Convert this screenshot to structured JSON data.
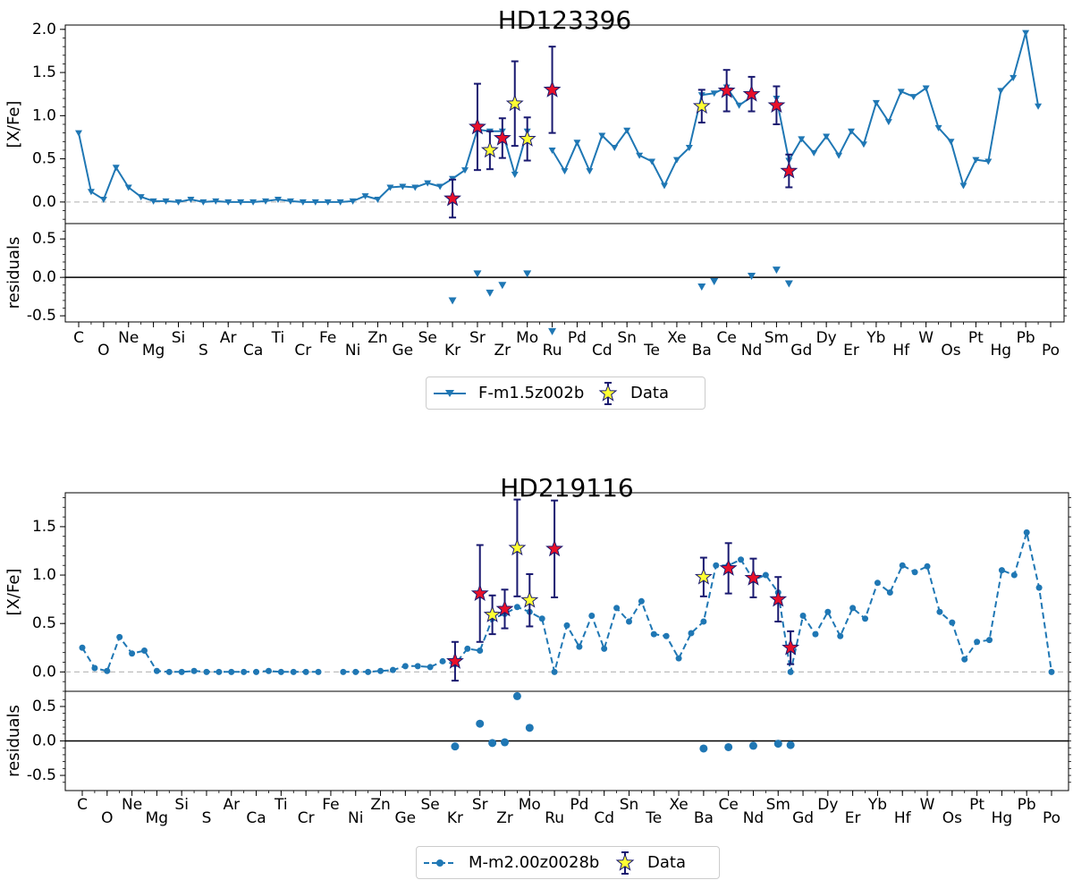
{
  "chart_data": [
    {
      "type": "line",
      "title": "HD123396",
      "ylabel": "[X/Fe]",
      "residual_ylabel": "residuals",
      "ylim": [
        -0.25,
        2.05
      ],
      "yticks": [
        "2.0",
        "1.5",
        "1.0",
        "0.5",
        "0.0"
      ],
      "residual_ylim": [
        -0.58,
        0.7
      ],
      "residual_yticks": [
        "0.5",
        "0.0",
        "-0.5"
      ],
      "x_labels": [
        "C",
        "O",
        "Ne",
        "Mg",
        "Si",
        "S",
        "Ar",
        "Ca",
        "Ti",
        "Cr",
        "Fe",
        "Ni",
        "Zn",
        "Ge",
        "Se",
        "Kr",
        "Sr",
        "Zr",
        "Mo",
        "Ru",
        "Pd",
        "Cd",
        "Sn",
        "Te",
        "Xe",
        "Ba",
        "Ce",
        "Nd",
        "Sm",
        "Gd",
        "Dy",
        "Er",
        "Yb",
        "Hf",
        "W",
        "Os",
        "Pt",
        "Hg",
        "Pb",
        "Po"
      ],
      "marker": "triangle-down",
      "line_style": "solid",
      "color": "#1f77b4",
      "model": {
        "name": "F-m1.5z002b",
        "z": [
          6,
          7,
          8,
          9,
          10,
          11,
          12,
          13,
          14,
          15,
          16,
          17,
          18,
          19,
          20,
          21,
          22,
          23,
          24,
          25,
          26,
          27,
          28,
          29,
          30,
          31,
          32,
          33,
          34,
          35,
          36,
          37,
          38,
          39,
          40,
          41,
          42,
          43,
          44,
          45,
          46,
          47,
          48,
          49,
          50,
          51,
          52,
          53,
          54,
          55,
          56,
          57,
          58,
          59,
          60,
          61,
          62,
          63,
          64,
          65,
          66,
          67,
          68,
          69,
          70,
          71,
          72,
          73,
          74,
          75,
          76,
          77,
          78,
          79,
          80,
          81,
          82,
          83,
          84
        ],
        "values": [
          0.8,
          0.12,
          0.03,
          0.4,
          0.17,
          0.06,
          0.01,
          0.01,
          0.0,
          0.03,
          0.0,
          0.01,
          0.0,
          0.0,
          0.0,
          0.01,
          0.03,
          0.01,
          0.0,
          0.0,
          0.0,
          0.0,
          0.01,
          0.07,
          0.03,
          0.17,
          0.18,
          0.17,
          0.22,
          0.18,
          0.27,
          0.37,
          0.84,
          0.82,
          0.82,
          0.32,
          0.82,
          null,
          0.6,
          0.36,
          0.69,
          0.36,
          0.77,
          0.63,
          0.83,
          0.54,
          0.47,
          0.19,
          0.49,
          0.63,
          1.24,
          1.26,
          1.33,
          1.12,
          1.22,
          null,
          1.2,
          0.48,
          0.73,
          0.57,
          0.76,
          0.54,
          0.82,
          0.67,
          1.15,
          0.93,
          1.28,
          1.22,
          1.32,
          0.86,
          0.7,
          0.19,
          0.49,
          0.47,
          1.29,
          1.44,
          1.96,
          1.11,
          null
        ]
      },
      "observations": [
        {
          "element": "Kr",
          "z": 36,
          "value": 0.04,
          "error": 0.22,
          "star": "red"
        },
        {
          "element": "Sr",
          "z": 38,
          "value": 0.87,
          "error": 0.5,
          "star": "red"
        },
        {
          "element": "Y",
          "z": 39,
          "value": 0.6,
          "error": 0.22,
          "star": "yellow"
        },
        {
          "element": "Zr",
          "z": 40,
          "value": 0.74,
          "error": 0.23,
          "star": "red"
        },
        {
          "element": "Nb",
          "z": 41,
          "value": 1.14,
          "error": 0.49,
          "star": "yellow"
        },
        {
          "element": "Mo",
          "z": 42,
          "value": 0.73,
          "error": 0.25,
          "star": "yellow"
        },
        {
          "element": "Ru",
          "z": 44,
          "value": 1.3,
          "error": 0.5,
          "star": "red"
        },
        {
          "element": "Ba",
          "z": 56,
          "value": 1.11,
          "error": 0.19,
          "star": "yellow"
        },
        {
          "element": "Ce",
          "z": 58,
          "value": 1.29,
          "error": 0.24,
          "star": "red"
        },
        {
          "element": "Nd",
          "z": 60,
          "value": 1.25,
          "error": 0.2,
          "star": "red"
        },
        {
          "element": "Sm",
          "z": 62,
          "value": 1.12,
          "error": 0.22,
          "star": "red"
        },
        {
          "element": "Eu",
          "z": 63,
          "value": 0.36,
          "error": 0.19,
          "star": "red"
        }
      ],
      "residuals": [
        {
          "z": 36,
          "value": -0.3
        },
        {
          "z": 38,
          "value": 0.05
        },
        {
          "z": 39,
          "value": -0.2
        },
        {
          "z": 40,
          "value": -0.1
        },
        {
          "z": 42,
          "value": 0.05
        },
        {
          "z": 44,
          "value": -0.7
        },
        {
          "z": 56,
          "value": -0.12
        },
        {
          "z": 57,
          "value": -0.05
        },
        {
          "z": 60,
          "value": 0.02
        },
        {
          "z": 62,
          "value": 0.1
        },
        {
          "z": 63,
          "value": -0.08
        }
      ],
      "legend": {
        "model_label": "F-m1.5z002b",
        "data_label": "Data"
      }
    },
    {
      "type": "line",
      "title": "HD219116",
      "ylabel": "[X/Fe]",
      "residual_ylabel": "residuals",
      "ylim": [
        -0.2,
        1.85
      ],
      "yticks": [
        "1.5",
        "1.0",
        "0.5",
        "0.0"
      ],
      "residual_ylim": [
        -0.72,
        0.72
      ],
      "residual_yticks": [
        "0.5",
        "0.0",
        "-0.5"
      ],
      "x_labels": [
        "C",
        "O",
        "Ne",
        "Mg",
        "Si",
        "S",
        "Ar",
        "Ca",
        "Ti",
        "Cr",
        "Fe",
        "Ni",
        "Zn",
        "Ge",
        "Se",
        "Kr",
        "Sr",
        "Zr",
        "Mo",
        "Ru",
        "Pd",
        "Cd",
        "Sn",
        "Te",
        "Xe",
        "Ba",
        "Ce",
        "Nd",
        "Sm",
        "Gd",
        "Dy",
        "Er",
        "Yb",
        "Hf",
        "W",
        "Os",
        "Pt",
        "Hg",
        "Pb",
        "Po"
      ],
      "marker": "circle",
      "line_style": "dashed",
      "color": "#1f77b4",
      "model": {
        "name": "M-m2.00z0028b",
        "z": [
          6,
          7,
          8,
          9,
          10,
          11,
          12,
          13,
          14,
          15,
          16,
          17,
          18,
          19,
          20,
          21,
          22,
          23,
          24,
          25,
          26,
          27,
          28,
          29,
          30,
          31,
          32,
          33,
          34,
          35,
          36,
          37,
          38,
          39,
          40,
          41,
          42,
          43,
          44,
          45,
          46,
          47,
          48,
          49,
          50,
          51,
          52,
          53,
          54,
          55,
          56,
          57,
          58,
          59,
          60,
          61,
          62,
          63,
          64,
          65,
          66,
          67,
          68,
          69,
          70,
          71,
          72,
          73,
          74,
          75,
          76,
          77,
          78,
          79,
          80,
          81,
          82,
          83,
          84
        ],
        "values": [
          0.25,
          0.04,
          0.01,
          0.36,
          0.19,
          0.22,
          0.01,
          0.0,
          0.0,
          0.01,
          0.0,
          0.0,
          0.0,
          0.0,
          0.0,
          0.01,
          0.0,
          0.0,
          0.0,
          0.0,
          null,
          0.0,
          0.0,
          0.0,
          0.01,
          0.02,
          0.06,
          0.06,
          0.05,
          0.11,
          0.08,
          0.24,
          0.22,
          0.55,
          0.6,
          0.67,
          0.62,
          0.55,
          0.0,
          0.48,
          0.26,
          0.58,
          0.24,
          0.66,
          0.52,
          0.73,
          0.39,
          0.37,
          0.14,
          0.4,
          0.52,
          1.1,
          1.1,
          1.16,
          0.95,
          1.0,
          0.82,
          0.0,
          0.58,
          0.39,
          0.62,
          0.37,
          0.66,
          0.55,
          0.92,
          0.82,
          1.1,
          1.03,
          1.09,
          0.62,
          0.51,
          0.13,
          0.31,
          0.33,
          1.05,
          1.0,
          1.44,
          0.87,
          0.0
        ]
      },
      "observations": [
        {
          "element": "Kr",
          "z": 36,
          "value": 0.11,
          "error": 0.2,
          "star": "red"
        },
        {
          "element": "Sr",
          "z": 38,
          "value": 0.81,
          "error": 0.5,
          "star": "red"
        },
        {
          "element": "Y",
          "z": 39,
          "value": 0.59,
          "error": 0.2,
          "star": "yellow"
        },
        {
          "element": "Zr",
          "z": 40,
          "value": 0.65,
          "error": 0.2,
          "star": "red"
        },
        {
          "element": "Nb",
          "z": 41,
          "value": 1.28,
          "error": 0.5,
          "star": "yellow"
        },
        {
          "element": "Mo",
          "z": 42,
          "value": 0.74,
          "error": 0.27,
          "star": "yellow"
        },
        {
          "element": "Ru",
          "z": 44,
          "value": 1.27,
          "error": 0.5,
          "star": "red"
        },
        {
          "element": "Ba",
          "z": 56,
          "value": 0.98,
          "error": 0.2,
          "star": "yellow"
        },
        {
          "element": "Ce",
          "z": 58,
          "value": 1.07,
          "error": 0.26,
          "star": "red"
        },
        {
          "element": "Nd",
          "z": 60,
          "value": 0.97,
          "error": 0.2,
          "star": "red"
        },
        {
          "element": "Sm",
          "z": 62,
          "value": 0.75,
          "error": 0.23,
          "star": "red"
        },
        {
          "element": "Eu",
          "z": 63,
          "value": 0.25,
          "error": 0.17,
          "star": "red"
        }
      ],
      "residuals": [
        {
          "z": 36,
          "value": -0.08
        },
        {
          "z": 38,
          "value": 0.25
        },
        {
          "z": 39,
          "value": -0.03
        },
        {
          "z": 40,
          "value": -0.02
        },
        {
          "z": 41,
          "value": 0.65
        },
        {
          "z": 42,
          "value": 0.19
        },
        {
          "z": 56,
          "value": -0.11
        },
        {
          "z": 58,
          "value": -0.09
        },
        {
          "z": 60,
          "value": -0.07
        },
        {
          "z": 62,
          "value": -0.04
        },
        {
          "z": 63,
          "value": -0.06
        }
      ],
      "legend": {
        "model_label": "M-m2.00z0028b",
        "data_label": "Data"
      }
    }
  ]
}
